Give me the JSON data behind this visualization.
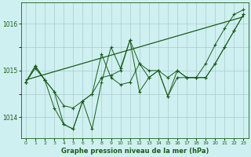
{
  "title": "Graphe pression niveau de la mer (hPa)",
  "background_color": "#cff0f0",
  "plot_bg_color": "#cff0f0",
  "grid_color": "#aacccc",
  "line_color": "#1a5c1a",
  "xlim": [
    -0.5,
    23.5
  ],
  "ylim": [
    1013.55,
    1016.45
  ],
  "yticks": [
    1014,
    1015,
    1016
  ],
  "xticks": [
    0,
    1,
    2,
    3,
    4,
    5,
    6,
    7,
    8,
    9,
    10,
    11,
    12,
    13,
    14,
    15,
    16,
    17,
    18,
    19,
    20,
    21,
    22,
    23
  ],
  "series": [
    [
      1014.75,
      1015.05,
      1014.8,
      1014.55,
      1013.85,
      1013.75,
      1014.35,
      1014.5,
      1014.85,
      1014.9,
      1015.0,
      1015.65,
      1014.55,
      1014.85,
      1015.0,
      1014.45,
      1015.0,
      1014.85,
      1014.85,
      1014.85,
      1015.15,
      1015.5,
      1015.85,
      1016.2
    ],
    [
      1014.75,
      1015.1,
      1014.8,
      1014.55,
      1014.25,
      1014.2,
      1014.35,
      1013.75,
      1014.75,
      1015.5,
      1015.05,
      1015.65,
      1015.15,
      1015.0,
      1015.0,
      1014.85,
      1015.0,
      1014.85,
      1014.85,
      1014.85,
      1015.15,
      1015.5,
      1015.85,
      1016.2
    ],
    [
      1014.75,
      1015.1,
      1014.8,
      1014.2,
      1013.85,
      1013.75,
      1014.35,
      1014.5,
      1015.35,
      1014.85,
      1014.7,
      1014.75,
      1015.15,
      1014.85,
      1015.0,
      1014.45,
      1014.85,
      1014.85,
      1014.85,
      1015.15,
      1015.55,
      1015.9,
      1016.2,
      1016.3
    ]
  ],
  "trend_line_x": [
    0,
    23
  ],
  "trend_line_y": [
    1014.8,
    1016.15
  ]
}
